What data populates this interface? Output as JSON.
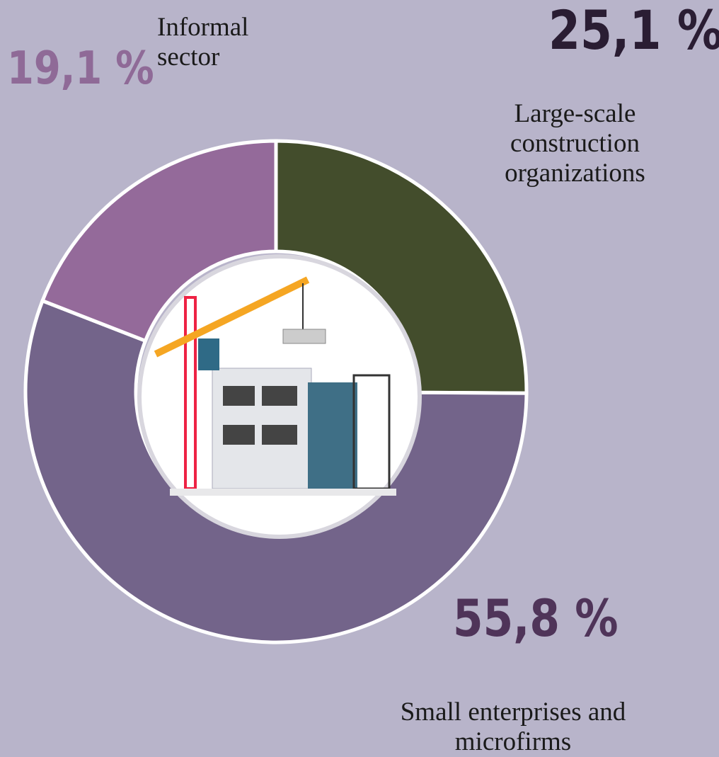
{
  "chart_data": {
    "type": "donut",
    "categories": [
      "Large-scale construction organizations",
      "Small enterprises and microfirms",
      "Informal sector"
    ],
    "values": [
      25.1,
      55.8,
      19.1
    ],
    "value_labels": [
      "25,1 %",
      "55,8 %",
      "19,1 %"
    ],
    "colors": [
      "#434d2c",
      "#73648a",
      "#946a9a"
    ],
    "label_colors": [
      "#2a1d33",
      "#4f3459",
      "#8f6a97"
    ]
  }
}
